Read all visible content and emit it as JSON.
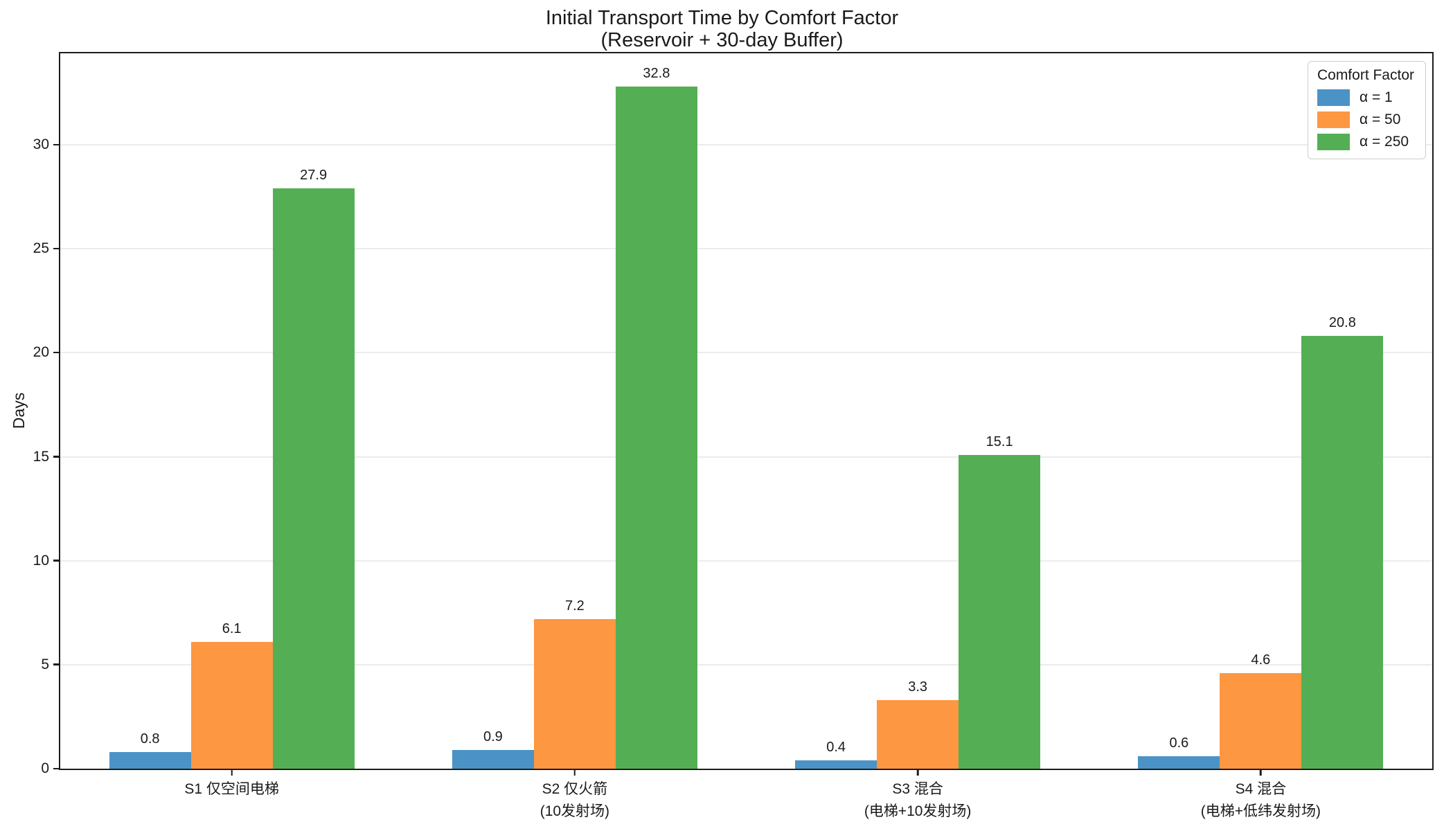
{
  "chart_data": {
    "type": "bar",
    "title": "Initial Transport Time by Comfort Factor",
    "subtitle": "(Reservoir + 30-day Buffer)",
    "ylabel": "Days",
    "xlabel": "",
    "legend_title": "Comfort Factor",
    "legend_position": "upper right",
    "grid": "horizontal, light gray",
    "categories": [
      "S1 仅空间电梯",
      "S2 仅火箭\n(10发射场)",
      "S3 混合\n(电梯+10发射场)",
      "S4 混合\n(电梯+低纬发射场)"
    ],
    "series": [
      {
        "name": "α = 1",
        "color": "#4B93C6",
        "values": [
          0.8,
          0.9,
          0.4,
          0.6
        ]
      },
      {
        "name": "α = 50",
        "color": "#FD9741",
        "values": [
          6.1,
          7.2,
          3.3,
          4.6
        ]
      },
      {
        "name": "α = 250",
        "color": "#54AF54",
        "values": [
          27.9,
          32.8,
          15.1,
          20.8
        ]
      }
    ],
    "value_labels": [
      "0.8",
      "6.1",
      "27.9",
      "0.9",
      "7.2",
      "32.8",
      "0.4",
      "3.3",
      "15.1",
      "0.6",
      "4.6",
      "20.8"
    ],
    "yticks": [
      0,
      5,
      10,
      15,
      20,
      25,
      30
    ],
    "ylim": [
      0,
      34.4
    ]
  }
}
